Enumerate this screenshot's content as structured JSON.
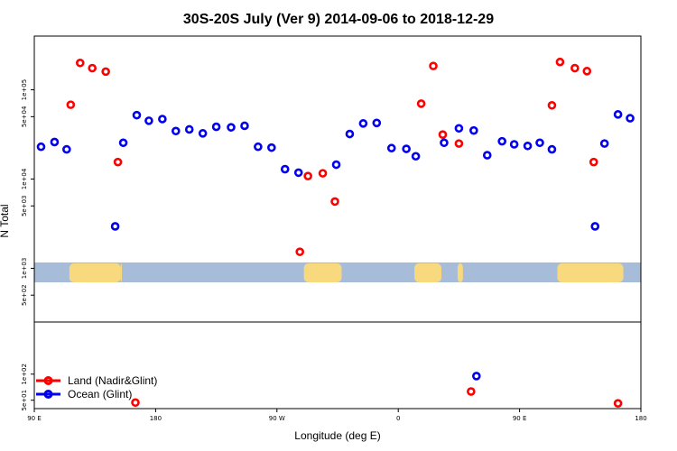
{
  "chart_data": {
    "type": "scatter",
    "title": "30S-20S July (Ver 9)   2014-09-06 to 2018-12-29",
    "xlabel": "Longitude (deg E)",
    "ylabel": "N Total",
    "x_scale": "longitude, starting at 90 E and wrapping eastward to 180 E (450 deg span)",
    "xlim": [
      90,
      540
    ],
    "x_ticks": [
      {
        "value": 90,
        "label": "90 E"
      },
      {
        "value": 180,
        "label": "180"
      },
      {
        "value": 270,
        "label": "90 W"
      },
      {
        "value": 360,
        "label": "0"
      },
      {
        "value": 450,
        "label": "90 E"
      },
      {
        "value": 540,
        "label": "180"
      }
    ],
    "top_panel": {
      "y_scale": "log",
      "ylim": [
        250,
        400000
      ],
      "y_ticks": [
        {
          "value": 500,
          "label": "5e+02"
        },
        {
          "value": 1000,
          "label": "1e+03"
        },
        {
          "value": 5000,
          "label": "5e+03"
        },
        {
          "value": 10000,
          "label": "1e+04"
        },
        {
          "value": 50000,
          "label": "5e+04"
        },
        {
          "value": 100000,
          "label": "1e+05"
        }
      ]
    },
    "bottom_panel": {
      "y_scale": "log",
      "ylim": [
        40,
        400
      ],
      "y_ticks": [
        {
          "value": 50,
          "label": "5e+01"
        },
        {
          "value": 100,
          "label": "1e+02"
        }
      ]
    },
    "land_map_strip": {
      "ocean_color": "#a6bcd8",
      "land_color": "#f9d97d",
      "land_segments": [
        [
          116,
          154
        ],
        [
          290,
          318
        ],
        [
          372,
          392
        ],
        [
          404,
          408
        ],
        [
          478,
          527
        ],
        [
          154,
          155
        ]
      ]
    },
    "series": [
      {
        "name": "Land (Nadir&Glint)",
        "color": "#ff0000",
        "top": [
          {
            "x": 117,
            "y": 68000
          },
          {
            "x": 124,
            "y": 200000
          },
          {
            "x": 133,
            "y": 175000
          },
          {
            "x": 143,
            "y": 160000
          },
          {
            "x": 152,
            "y": 15500
          },
          {
            "x": 287,
            "y": 1530
          },
          {
            "x": 293,
            "y": 10800
          },
          {
            "x": 304,
            "y": 11600
          },
          {
            "x": 313,
            "y": 5600
          },
          {
            "x": 377,
            "y": 70000
          },
          {
            "x": 386,
            "y": 185000
          },
          {
            "x": 393,
            "y": 31500
          },
          {
            "x": 405,
            "y": 25000
          },
          {
            "x": 474,
            "y": 67000
          },
          {
            "x": 480,
            "y": 205000
          },
          {
            "x": 491,
            "y": 175000
          },
          {
            "x": 500,
            "y": 162000
          },
          {
            "x": 505,
            "y": 15500
          }
        ],
        "bottom": [
          {
            "x": 165,
            "y": 47
          },
          {
            "x": 414,
            "y": 63
          },
          {
            "x": 523,
            "y": 46
          }
        ]
      },
      {
        "name": "Ocean (Glint)",
        "color": "#0000ee",
        "top": [
          {
            "x": 95,
            "y": 23000
          },
          {
            "x": 105,
            "y": 26000
          },
          {
            "x": 114,
            "y": 21500
          },
          {
            "x": 150,
            "y": 2950
          },
          {
            "x": 156,
            "y": 25500
          },
          {
            "x": 166,
            "y": 52000
          },
          {
            "x": 175,
            "y": 45000
          },
          {
            "x": 185,
            "y": 47000
          },
          {
            "x": 195,
            "y": 34500
          },
          {
            "x": 205,
            "y": 36000
          },
          {
            "x": 215,
            "y": 32500
          },
          {
            "x": 225,
            "y": 38500
          },
          {
            "x": 236,
            "y": 38000
          },
          {
            "x": 246,
            "y": 39500
          },
          {
            "x": 256,
            "y": 23000
          },
          {
            "x": 266,
            "y": 22500
          },
          {
            "x": 276,
            "y": 12900
          },
          {
            "x": 286,
            "y": 11800
          },
          {
            "x": 314,
            "y": 14500
          },
          {
            "x": 324,
            "y": 32000
          },
          {
            "x": 334,
            "y": 42000
          },
          {
            "x": 344,
            "y": 42500
          },
          {
            "x": 355,
            "y": 22200
          },
          {
            "x": 366,
            "y": 21800
          },
          {
            "x": 373,
            "y": 18000
          },
          {
            "x": 394,
            "y": 25500
          },
          {
            "x": 405,
            "y": 37000
          },
          {
            "x": 416,
            "y": 35000
          },
          {
            "x": 426,
            "y": 18500
          },
          {
            "x": 437,
            "y": 26500
          },
          {
            "x": 446,
            "y": 24500
          },
          {
            "x": 456,
            "y": 23500
          },
          {
            "x": 465,
            "y": 25500
          },
          {
            "x": 474,
            "y": 21500
          },
          {
            "x": 506,
            "y": 2950
          },
          {
            "x": 513,
            "y": 25000
          },
          {
            "x": 523,
            "y": 53000
          },
          {
            "x": 532,
            "y": 48000
          }
        ],
        "bottom": [
          {
            "x": 418,
            "y": 95
          }
        ]
      }
    ],
    "legend": {
      "placement": "bottom-left"
    }
  }
}
